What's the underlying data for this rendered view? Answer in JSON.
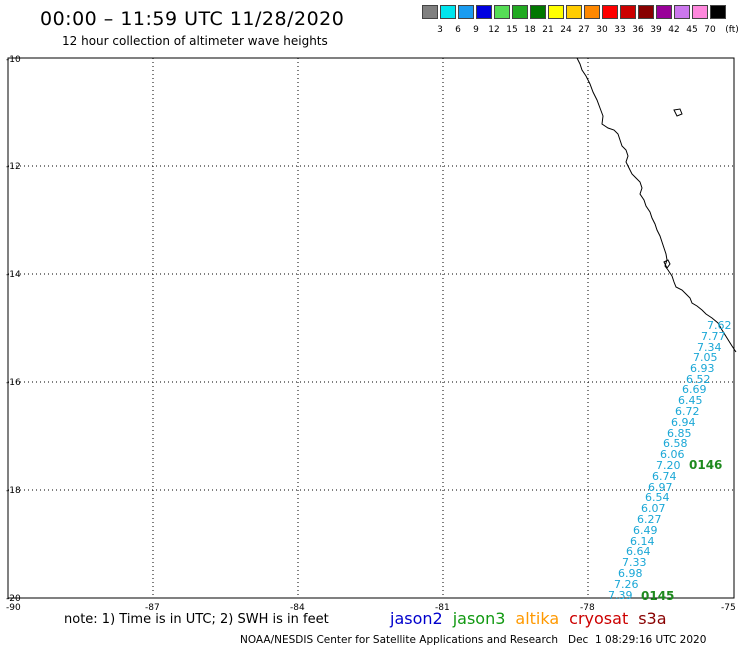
{
  "header": {
    "title": "00:00 – 11:59 UTC 11/28/2020",
    "subtitle": "12 hour collection of altimeter wave heights"
  },
  "legend": {
    "unit": "(ft)",
    "colors": [
      "#808080",
      "#00e5ee",
      "#1a9cf0",
      "#0000e0",
      "#55dd55",
      "#22aa22",
      "#007700",
      "#ffff00",
      "#ffcc00",
      "#ff8800",
      "#ff0000",
      "#cc0000",
      "#880000",
      "#990099",
      "#cc77ee",
      "#ff88dd",
      "#000000"
    ],
    "labels": [
      "3",
      "6",
      "9",
      "12",
      "15",
      "18",
      "21",
      "24",
      "27",
      "30",
      "33",
      "36",
      "39",
      "42",
      "45",
      "70"
    ]
  },
  "axes": {
    "lat_labels": [
      "-10",
      "-12",
      "-14",
      "-16",
      "-18",
      "-20"
    ],
    "lon_labels": [
      "-90",
      "-87",
      "-84",
      "-81",
      "-78",
      "-75"
    ]
  },
  "track": {
    "values": [
      "7.62",
      "7.77",
      "7.34",
      "7.05",
      "6.93",
      "6.52",
      "6.69",
      "6.45",
      "6.72",
      "6.94",
      "6.85",
      "6.58",
      "6.06",
      "7.20",
      "6.74",
      "6.97",
      "6.54",
      "6.07",
      "6.27",
      "6.49",
      "6.14",
      "6.64",
      "7.33",
      "6.98",
      "7.26",
      "7.39"
    ],
    "pass_labels": [
      "0146",
      "0145"
    ]
  },
  "footer": {
    "note": "note: 1) Time is in UTC; 2) SWH is in feet",
    "satellites": [
      {
        "name": "jason2",
        "color": "#0000cc"
      },
      {
        "name": "jason3",
        "color": "#119911"
      },
      {
        "name": "altika",
        "color": "#ff9900"
      },
      {
        "name": "cryosat",
        "color": "#cc0000"
      },
      {
        "name": "s3a",
        "color": "#880000"
      }
    ],
    "credit": "NOAA/NESDIS Center for Satellite Applications and Research   Dec  1 08:29:16 UTC 2020"
  }
}
